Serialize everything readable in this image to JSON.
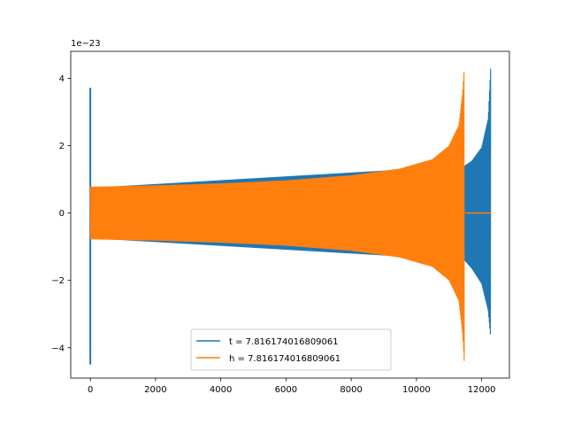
{
  "chart_data": {
    "type": "line",
    "title": "",
    "xlabel": "",
    "ylabel": "",
    "xlim": [
      -600,
      12850
    ],
    "ylim": [
      -4.9,
      4.8
    ],
    "y_offset_text": "1e−23",
    "x_ticks": [
      0,
      2000,
      4000,
      6000,
      8000,
      10000,
      12000
    ],
    "x_tick_labels": [
      "0",
      "2000",
      "4000",
      "6000",
      "8000",
      "10000",
      "12000"
    ],
    "y_ticks": [
      -4,
      -2,
      0,
      2,
      4
    ],
    "y_tick_labels": [
      "−4",
      "−2",
      "0",
      "2",
      "4"
    ],
    "grid": false,
    "legend_position": "bottom-center",
    "series": [
      {
        "name": "t = 7.816174016809061",
        "color": "#1f77b4",
        "shape": "oscillating waveform (chirp)",
        "envelope_points": [
          {
            "x": 0,
            "upper": 3.72,
            "lower": -4.5
          },
          {
            "x": 50,
            "upper": 0.75,
            "lower": -0.75
          },
          {
            "x": 11470,
            "upper": 1.4,
            "lower": -1.4
          },
          {
            "x": 11700,
            "upper": 1.55,
            "lower": -1.65
          },
          {
            "x": 12000,
            "upper": 1.95,
            "lower": -2.1
          },
          {
            "x": 12200,
            "upper": 2.8,
            "lower": -2.9
          },
          {
            "x": 12280,
            "upper": 4.4,
            "lower": -3.75
          },
          {
            "x": 12300,
            "upper": 0,
            "lower": 0
          }
        ]
      },
      {
        "name": "h = 7.816174016809061",
        "color": "#ff7f0e",
        "shape": "oscillating waveform (chirp)",
        "envelope_points": [
          {
            "x": 0,
            "upper": 0.78,
            "lower": -0.78
          },
          {
            "x": 2000,
            "upper": 0.82,
            "lower": -0.82
          },
          {
            "x": 4000,
            "upper": 0.88,
            "lower": -0.88
          },
          {
            "x": 6000,
            "upper": 0.97,
            "lower": -0.97
          },
          {
            "x": 8000,
            "upper": 1.12,
            "lower": -1.12
          },
          {
            "x": 9500,
            "upper": 1.32,
            "lower": -1.32
          },
          {
            "x": 10500,
            "upper": 1.6,
            "lower": -1.6
          },
          {
            "x": 11000,
            "upper": 2.0,
            "lower": -2.0
          },
          {
            "x": 11300,
            "upper": 2.6,
            "lower": -2.6
          },
          {
            "x": 11420,
            "upper": 3.6,
            "lower": -3.6
          },
          {
            "x": 11470,
            "upper": 4.4,
            "lower": -4.5
          }
        ],
        "zero_segment": [
          11500,
          12300
        ]
      }
    ]
  }
}
